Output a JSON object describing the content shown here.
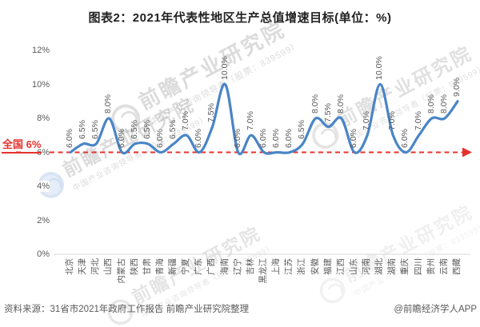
{
  "page": {
    "title": "图表2：2021年代表性地区生产总值增速目标(单位：%)"
  },
  "footer": {
    "source": "资料来源：31省市2021年政府工作报告 前瞻产业研究院整理",
    "credit": "@前瞻经济学人APP"
  },
  "watermark": {
    "brand": "前瞻产业研究院",
    "sub": "中国产业咨询领导者（股票：839599）"
  },
  "chart_data": {
    "type": "line",
    "title": "图表2：2021年代表性地区生产总值增速目标(单位：%)",
    "categories": [
      "北京",
      "天津",
      "河北",
      "山西",
      "内蒙古",
      "陕西",
      "甘肃",
      "青海",
      "新疆",
      "宁夏",
      "广东",
      "广西",
      "海南",
      "辽宁",
      "吉林",
      "黑龙江",
      "上海",
      "江苏",
      "浙江",
      "安徽",
      "福建",
      "江西",
      "山东",
      "河南",
      "湖北",
      "湖南",
      "重庆",
      "四川",
      "贵州",
      "云南",
      "西藏"
    ],
    "values": [
      6.0,
      6.5,
      6.5,
      8.0,
      6.0,
      6.5,
      6.5,
      6.0,
      6.5,
      7.0,
      6.0,
      7.5,
      10.0,
      6.0,
      7.0,
      6.0,
      6.0,
      6.0,
      6.5,
      8.0,
      7.5,
      8.0,
      6.0,
      7.0,
      10.0,
      7.0,
      6.0,
      7.0,
      8.0,
      8.0,
      9.0
    ],
    "unit": "%",
    "y_ticks": [
      "0%",
      "2%",
      "4%",
      "6%",
      "8%",
      "10%",
      "12%"
    ],
    "ylim": [
      0,
      12
    ],
    "grid": false,
    "legend": false,
    "smooth": true,
    "data_labels": true,
    "reference_line": {
      "value": 6,
      "label": "全国 6%"
    },
    "colors": {
      "line": "#4a85c7",
      "reference": "#e5322d",
      "label": "#595959",
      "axis": "#d9d9d9"
    }
  }
}
